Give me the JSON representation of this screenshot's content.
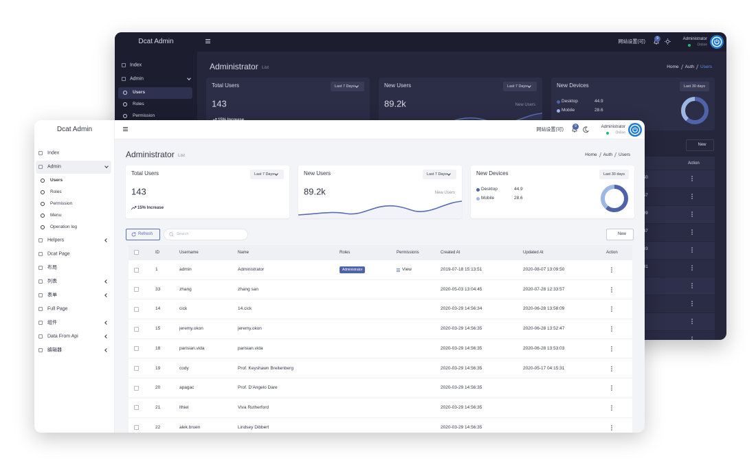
{
  "back_window": {
    "brand": "Dcat Admin",
    "header": {
      "site_settings": "网站设置(可)",
      "badge": "9",
      "user": "Administrator",
      "status": "Online"
    },
    "sidebar": [
      {
        "label": "Index"
      },
      {
        "label": "Admin",
        "children": [
          {
            "label": "Users",
            "active": true
          },
          {
            "label": "Roles"
          },
          {
            "label": "Permission"
          }
        ]
      }
    ],
    "page_title": "Administrator",
    "page_subtitle": "List",
    "breadcrumb": [
      "Home",
      "Auth",
      "Users"
    ],
    "cards": {
      "total_users": {
        "title": "Total Users",
        "period": "Last 7 Days",
        "value": "143",
        "note": "15% Increase"
      },
      "new_users": {
        "title": "New Users",
        "period": "Last 7 Days",
        "value": "89.2k",
        "legend": "New Users"
      },
      "new_devices": {
        "title": "New Devices",
        "period": "Last 30 days",
        "items": [
          {
            "label": "Desktop",
            "value": 44.9,
            "color": "#4f63a8"
          },
          {
            "label": "Mobile",
            "value": 28.6,
            "color": "#9db8e4"
          }
        ]
      }
    },
    "new_button": "New",
    "action_header": "Action",
    "table_fragments": [
      "50",
      "57",
      "09",
      "47",
      "03",
      "31"
    ]
  },
  "front_window": {
    "brand": "Dcat Admin",
    "header": {
      "site_settings": "网站设置(可)",
      "badge": "9",
      "user": "Administrator",
      "status": "Online"
    },
    "sidebar": [
      {
        "label": "Index"
      },
      {
        "label": "Admin",
        "children": [
          {
            "label": "Users",
            "active": true
          },
          {
            "label": "Roles"
          },
          {
            "label": "Permission"
          },
          {
            "label": "Menu"
          },
          {
            "label": "Operation log"
          }
        ]
      },
      {
        "label": "Helpers",
        "collapsible": true
      },
      {
        "label": "Dcat Page"
      },
      {
        "label": "布局"
      },
      {
        "label": "列表",
        "collapsible": true
      },
      {
        "label": "表单",
        "collapsible": true
      },
      {
        "label": "Full Page"
      },
      {
        "label": "组件",
        "collapsible": true
      },
      {
        "label": "Data From Api",
        "collapsible": true
      },
      {
        "label": "编辑器",
        "collapsible": true
      }
    ],
    "page_title": "Administrator",
    "page_subtitle": "List",
    "breadcrumb": [
      "Home",
      "Auth",
      "Users"
    ],
    "cards": {
      "total_users": {
        "title": "Total Users",
        "period": "Last 7 Days",
        "value": "143",
        "note": "15% Increase"
      },
      "new_users": {
        "title": "New Users",
        "period": "Last 7 Days",
        "value": "89.2k",
        "legend": "New Users"
      },
      "new_devices": {
        "title": "New Devices",
        "period": "Last 30 days",
        "items": [
          {
            "label": "Desktop",
            "value": 44.9,
            "color": "#4f63a8"
          },
          {
            "label": "Mobile",
            "value": 28.6,
            "color": "#9db8e4"
          }
        ]
      }
    },
    "toolbar": {
      "refresh": "Refresh",
      "search": "Search",
      "new": "New"
    },
    "table": {
      "columns": [
        "ID",
        "Username",
        "Name",
        "Roles",
        "Permissions",
        "Created At",
        "Updated At",
        "Action"
      ],
      "rows": [
        [
          "1",
          "admin",
          "Administrator",
          "Administrator",
          "View",
          "2019-07-18 15:13:51",
          "2020-08-07 13:09:50"
        ],
        [
          "33",
          "zhang",
          "zhang san",
          null,
          null,
          "2020-05-03 13:04:45",
          "2020-07-28 12:33:57"
        ],
        [
          "14",
          "cick",
          "14.cick",
          null,
          null,
          "2020-03-29 14:56:34",
          "2020-06-28 13:58:09"
        ],
        [
          "15",
          "jeremy.okon",
          "jeremy.okon",
          null,
          null,
          "2020-03-29 14:56:35",
          "2020-06-28 13:52:47"
        ],
        [
          "18",
          "parisian.vida",
          "parisian.vida",
          null,
          null,
          "2020-03-29 14:56:35",
          "2020-06-28 13:53:03"
        ],
        [
          "19",
          "cody",
          "Prof. Keyshawn Breitenberg",
          null,
          null,
          "2020-03-29 14:56:35",
          "2020-05-17 04:15:31"
        ],
        [
          "20",
          "apagac",
          "Prof. D'Angelo Dare",
          null,
          null,
          "2020-03-29 14:56:35",
          null
        ],
        [
          "21",
          "lthiel",
          "Viva Rutherford",
          null,
          null,
          "2020-03-29 14:56:35",
          null
        ],
        [
          "22",
          "alek.bruen",
          "Lindsey Dibbert",
          null,
          null,
          "2020-03-29 14:56:35",
          null
        ]
      ]
    }
  }
}
